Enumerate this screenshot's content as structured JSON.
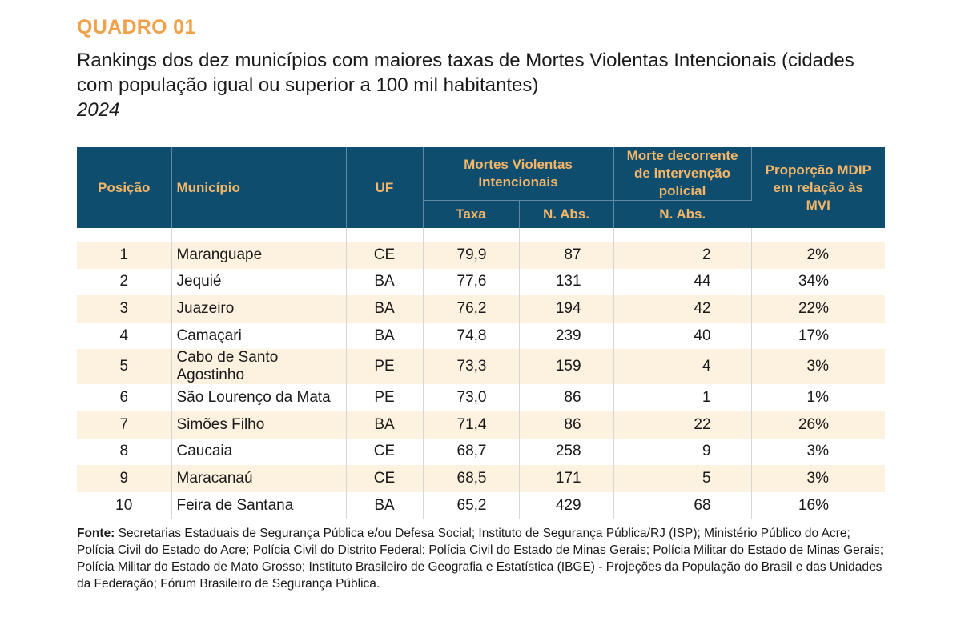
{
  "label": "QUADRO 01",
  "title": "Rankings dos dez municípios com maiores taxas de Mortes Violentas Intencionais (cidades com população igual ou superior a 100 mil habitantes)",
  "year": "2024",
  "table": {
    "headers": {
      "posicao": "Posição",
      "municipio": "Município",
      "uf": "UF",
      "mvi": "Mortes Violentas Intencionais",
      "mdip": "Morte decorrente de intervenção policial",
      "proporcao": "Proporção MDIP em relação às MVI",
      "taxa": "Taxa",
      "nabs_mvi": "N. Abs.",
      "nabs_mdip": "N. Abs."
    },
    "rows": [
      {
        "pos": "1",
        "municipio": "Maranguape",
        "uf": "CE",
        "taxa": "79,9",
        "nabs": "87",
        "mdip": "2",
        "prop": "2%"
      },
      {
        "pos": "2",
        "municipio": "Jequié",
        "uf": "BA",
        "taxa": "77,6",
        "nabs": "131",
        "mdip": "44",
        "prop": "34%"
      },
      {
        "pos": "3",
        "municipio": "Juazeiro",
        "uf": "BA",
        "taxa": "76,2",
        "nabs": "194",
        "mdip": "42",
        "prop": "22%"
      },
      {
        "pos": "4",
        "municipio": "Camaçari",
        "uf": "BA",
        "taxa": "74,8",
        "nabs": "239",
        "mdip": "40",
        "prop": "17%"
      },
      {
        "pos": "5",
        "municipio": "Cabo de Santo Agostinho",
        "uf": "PE",
        "taxa": "73,3",
        "nabs": "159",
        "mdip": "4",
        "prop": "3%"
      },
      {
        "pos": "6",
        "municipio": "São Lourenço da Mata",
        "uf": "PE",
        "taxa": "73,0",
        "nabs": "86",
        "mdip": "1",
        "prop": "1%"
      },
      {
        "pos": "7",
        "municipio": "Simões Filho",
        "uf": "BA",
        "taxa": "71,4",
        "nabs": "86",
        "mdip": "22",
        "prop": "26%"
      },
      {
        "pos": "8",
        "municipio": "Caucaia",
        "uf": "CE",
        "taxa": "68,7",
        "nabs": "258",
        "mdip": "9",
        "prop": "3%"
      },
      {
        "pos": "9",
        "municipio": "Maracanaú",
        "uf": "CE",
        "taxa": "68,5",
        "nabs": "171",
        "mdip": "5",
        "prop": "3%"
      },
      {
        "pos": "10",
        "municipio": "Feira de Santana",
        "uf": "BA",
        "taxa": "65,2",
        "nabs": "429",
        "mdip": "68",
        "prop": "16%"
      }
    ]
  },
  "source": {
    "label": "Fonte:",
    "text": " Secretarias Estaduais de Segurança Pública e/ou Defesa Social; Instituto de Segurança Pública/RJ (ISP); Ministério Público do Acre; Polícia Civil do Estado do Acre; Polícia Civil do Distrito Federal; Polícia Civil do Estado de Minas Gerais; Polícia Militar do Estado de Minas Gerais; Polícia Militar do Estado de Mato Grosso; Instituto Brasileiro de Geografia e Estatística (IBGE) - Projeções da População do Brasil e das Unidades da Federação; Fórum Brasileiro de Segurança Pública."
  },
  "colors": {
    "label": "#f0a14a",
    "header_bg": "#0f4d6e",
    "header_text": "#f4b76a",
    "row_alt": "#fdf1df"
  }
}
